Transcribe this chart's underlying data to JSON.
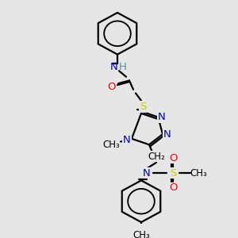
{
  "bg_color": "#e8e8e8",
  "colors": {
    "N": "#0000cc",
    "O": "#ff0000",
    "S": "#cccc00",
    "H": "#4a9090",
    "bond": "#000000",
    "bg": "#e6e6e6"
  },
  "layout": {
    "figsize": [
      3.0,
      3.0
    ],
    "dpi": 100,
    "xlim": [
      0,
      300
    ],
    "ylim": [
      0,
      300
    ]
  }
}
